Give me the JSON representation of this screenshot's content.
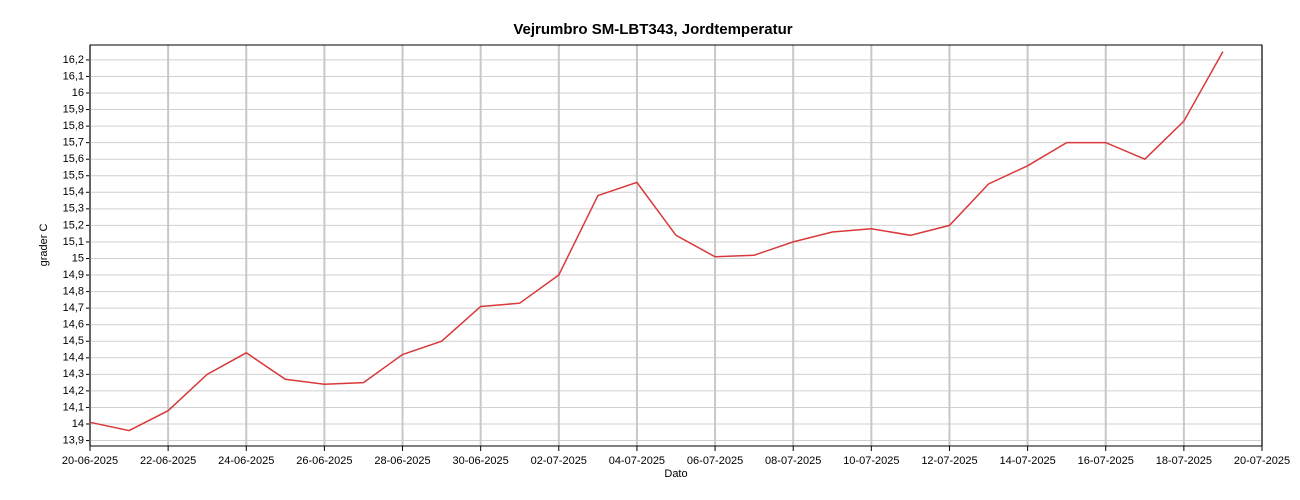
{
  "chart_data": {
    "type": "line",
    "title": "Vejrumbro SM-LBT343, Jordtemperatur",
    "x_label": "Dato",
    "y_label": "grader C",
    "x": [
      "20-06-2025",
      "21-06-2025",
      "22-06-2025",
      "23-06-2025",
      "24-06-2025",
      "25-06-2025",
      "26-06-2025",
      "27-06-2025",
      "28-06-2025",
      "29-06-2025",
      "30-06-2025",
      "01-07-2025",
      "02-07-2025",
      "03-07-2025",
      "04-07-2025",
      "05-07-2025",
      "06-07-2025",
      "07-07-2025",
      "08-07-2025",
      "09-07-2025",
      "10-07-2025",
      "11-07-2025",
      "12-07-2025",
      "13-07-2025",
      "14-07-2025",
      "15-07-2025",
      "16-07-2025",
      "17-07-2025",
      "18-07-2025",
      "19-07-2025"
    ],
    "series": [
      {
        "name": "Jordtemperatur",
        "color": "#d9393b",
        "values": [
          14.01,
          13.96,
          14.08,
          14.3,
          14.43,
          14.27,
          14.24,
          14.25,
          14.42,
          14.5,
          14.71,
          14.73,
          14.9,
          15.38,
          15.46,
          15.14,
          15.01,
          15.02,
          15.1,
          15.16,
          15.18,
          15.14,
          15.2,
          15.45,
          15.56,
          15.7,
          15.7,
          15.6,
          15.83,
          16.25
        ]
      }
    ],
    "xlim": [
      "20-06-2025",
      "20-07-2025"
    ],
    "xticks": [
      "20-06-2025",
      "22-06-2025",
      "24-06-2025",
      "26-06-2025",
      "28-06-2025",
      "30-06-2025",
      "02-07-2025",
      "04-07-2025",
      "06-07-2025",
      "08-07-2025",
      "10-07-2025",
      "12-07-2025",
      "14-07-2025",
      "16-07-2025",
      "18-07-2025",
      "20-07-2025"
    ],
    "ylim": [
      13.867,
      16.29
    ],
    "yticks": [
      {
        "value": 13.9,
        "label": "13,9"
      },
      14,
      {
        "value": 14.1,
        "label": "14,1"
      },
      {
        "value": 14.2,
        "label": "14,2"
      },
      {
        "value": 14.3,
        "label": "14,3"
      },
      {
        "value": 14.4,
        "label": "14,4"
      },
      {
        "value": 14.5,
        "label": "14,5"
      },
      {
        "value": 14.6,
        "label": "14,6"
      },
      {
        "value": 14.7,
        "label": "14,7"
      },
      {
        "value": 14.8,
        "label": "14,8"
      },
      {
        "value": 14.9,
        "label": "14,9"
      },
      15,
      {
        "value": 15.1,
        "label": "15,1"
      },
      {
        "value": 15.2,
        "label": "15,2"
      },
      {
        "value": 15.3,
        "label": "15,3"
      },
      {
        "value": 15.4,
        "label": "15,4"
      },
      {
        "value": 15.5,
        "label": "15,5"
      },
      {
        "value": 15.6,
        "label": "15,6"
      },
      {
        "value": 15.7,
        "label": "15,7"
      },
      {
        "value": 15.8,
        "label": "15,8"
      },
      {
        "value": 15.9,
        "label": "15,9"
      },
      16,
      {
        "value": 16.1,
        "label": "16,1"
      },
      {
        "value": 16.2,
        "label": "16,2"
      }
    ],
    "grid": true
  }
}
